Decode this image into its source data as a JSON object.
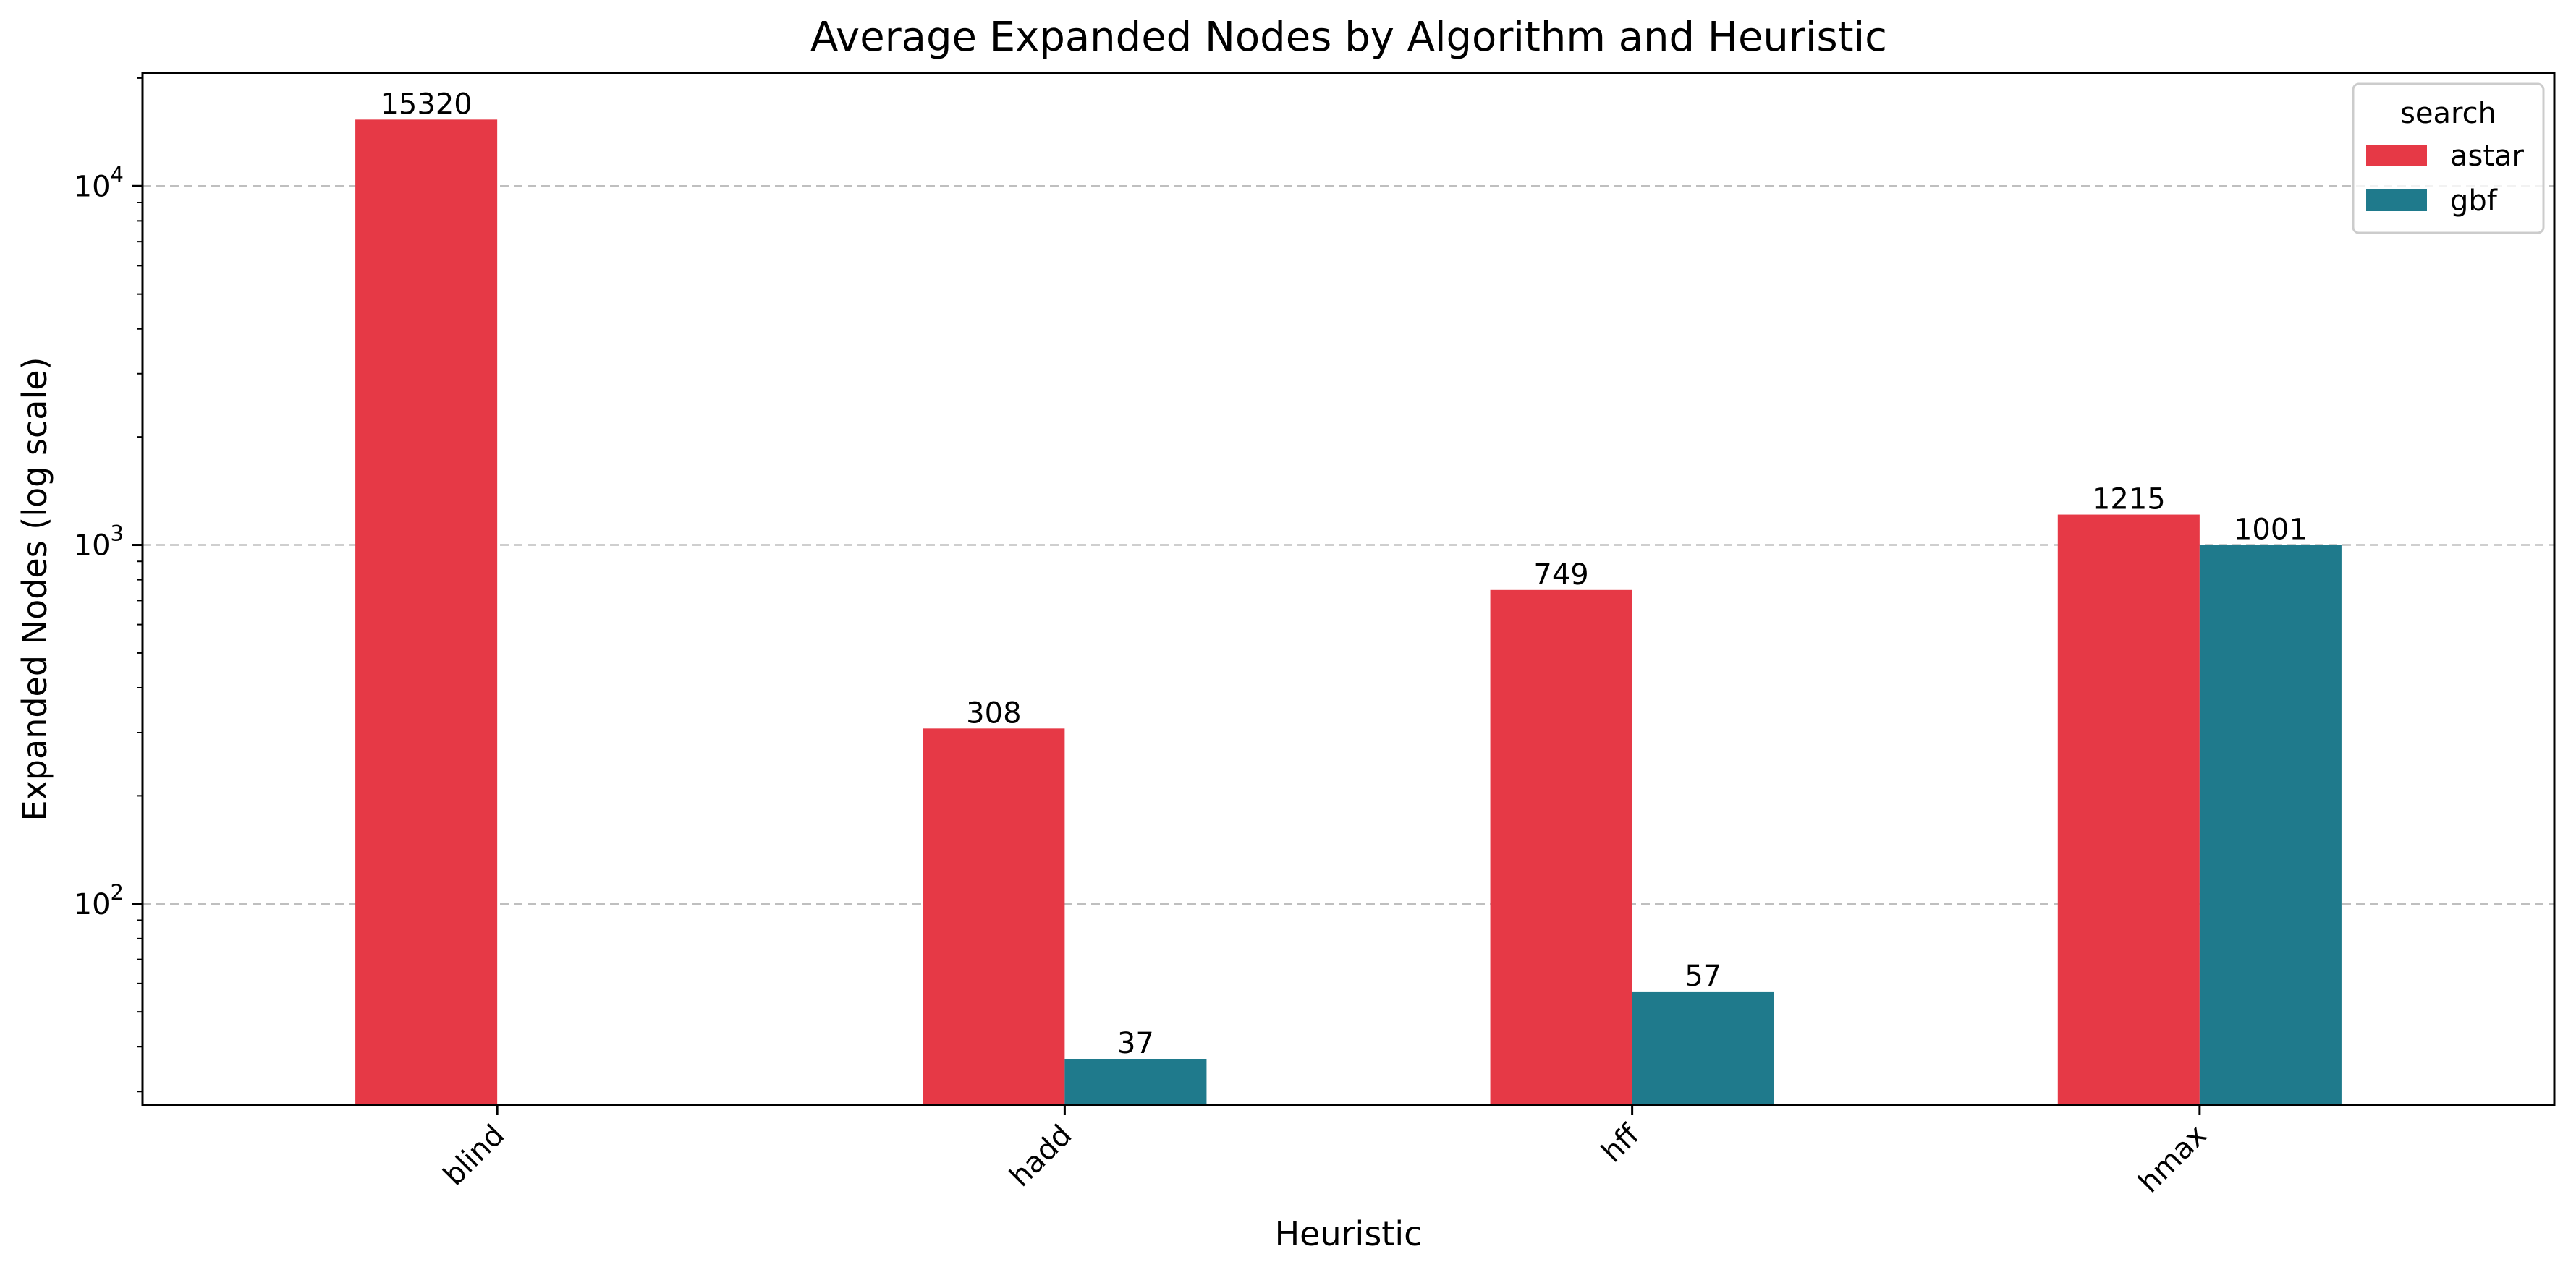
{
  "chart_data": {
    "type": "bar",
    "title": "Average Expanded Nodes by Algorithm and Heuristic",
    "xlabel": "Heuristic",
    "ylabel": "Expanded Nodes (log scale)",
    "yscale": "log",
    "ylim": [
      27.5,
      20650
    ],
    "y_ticks": [
      {
        "value": 100,
        "base": "10",
        "exp": "2"
      },
      {
        "value": 1000,
        "base": "10",
        "exp": "3"
      },
      {
        "value": 10000,
        "base": "10",
        "exp": "4"
      }
    ],
    "grid": "y-major-dashed",
    "categories": [
      "blind",
      "hadd",
      "hff",
      "hmax"
    ],
    "legend": {
      "title": "search",
      "position": "top-right"
    },
    "series": [
      {
        "name": "astar",
        "color": "#E63946",
        "values": [
          15320,
          308,
          749,
          1215
        ],
        "labels": [
          "15320",
          "308",
          "749",
          "1215"
        ]
      },
      {
        "name": "gbf",
        "color": "#1F7A8C",
        "values": [
          null,
          37,
          57,
          1001
        ],
        "labels": [
          "",
          "37",
          "57",
          "1001"
        ]
      }
    ]
  }
}
